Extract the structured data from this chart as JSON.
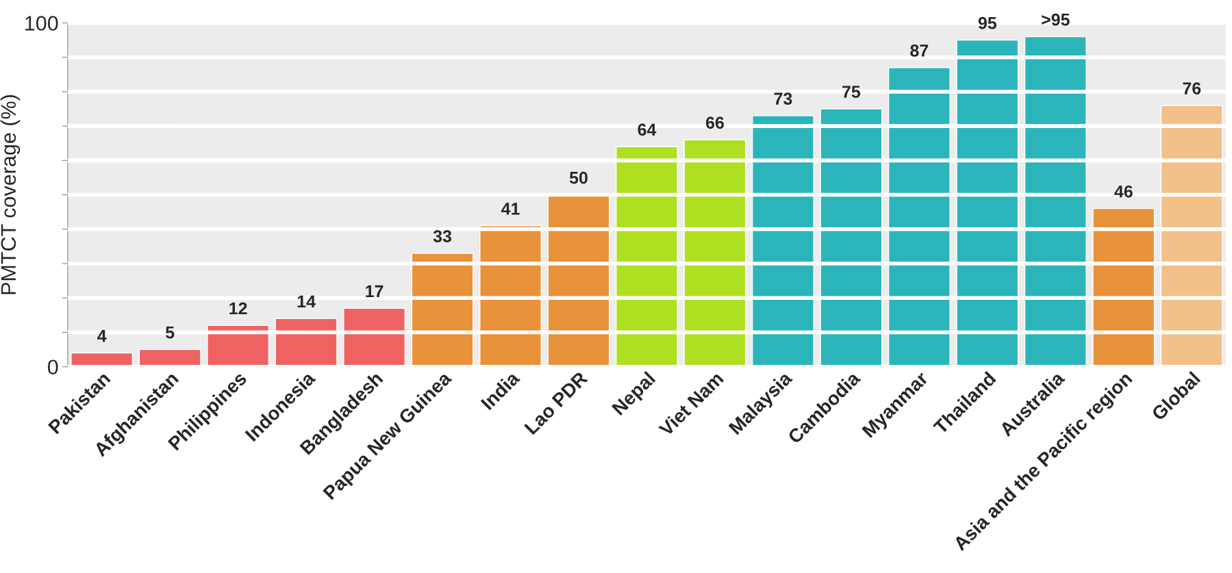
{
  "chart_data": {
    "type": "bar",
    "ylabel": "PMTCT coverage (%)",
    "categories": [
      "Pakistan",
      "Afghanistan",
      "Philippines",
      "Indonesia",
      "Bangladesh",
      "Papua New Guinea",
      "India",
      "Lao PDR",
      "Nepal",
      "Viet Nam",
      "Malaysia",
      "Cambodia",
      "Myanmar",
      "Thailand",
      "Australia",
      "Asia and the Pacific region",
      "Global"
    ],
    "values": [
      4,
      5,
      12,
      14,
      17,
      33,
      41,
      50,
      64,
      66,
      73,
      75,
      87,
      95,
      96,
      46,
      76
    ],
    "value_labels": [
      "4",
      "5",
      "12",
      "14",
      "17",
      "33",
      "41",
      "50",
      "64",
      "66",
      "73",
      "75",
      "87",
      "95",
      ">95",
      "46",
      "76"
    ],
    "colors": [
      "#ef6262",
      "#ef6262",
      "#ef6262",
      "#ef6262",
      "#ef6262",
      "#e8923a",
      "#e8923a",
      "#e8923a",
      "#aee021",
      "#aee021",
      "#2bb5bb",
      "#2bb5bb",
      "#2bb5bb",
      "#2bb5bb",
      "#2bb5bb",
      "#e8923a",
      "#f3c089"
    ],
    "ylim": [
      0,
      100
    ],
    "yticks": [
      0,
      {
        "value": 10,
        "label": null
      },
      {
        "value": 20,
        "label": null
      },
      {
        "value": 30,
        "label": null
      },
      {
        "value": 40,
        "label": null
      },
      {
        "value": 50,
        "label": null
      },
      {
        "value": 60,
        "label": null
      },
      {
        "value": 70,
        "label": null
      },
      {
        "value": 80,
        "label": null
      },
      {
        "value": 90,
        "label": null
      },
      100
    ],
    "grid": "y"
  }
}
